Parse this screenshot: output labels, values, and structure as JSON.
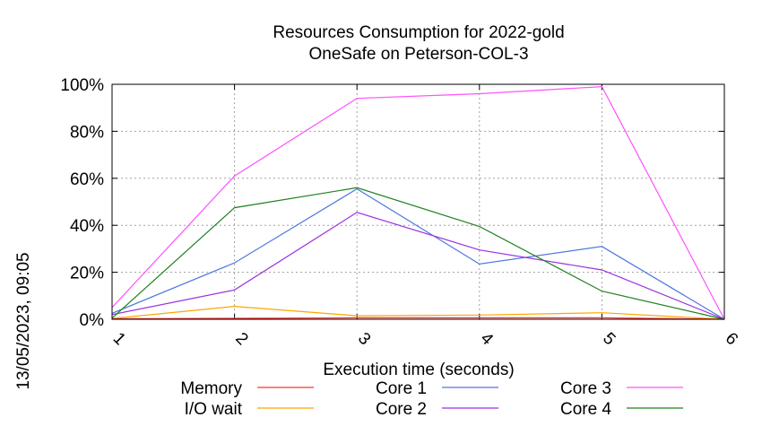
{
  "chart_data": {
    "type": "line",
    "title": "Resources Consumption for 2022-gold",
    "subtitle": "OneSafe on Peterson-COL-3",
    "xlabel": "Execution time (seconds)",
    "ylabel": "",
    "side_label": "13/05/2023, 09:05",
    "x": [
      1,
      2,
      3,
      4,
      5,
      6
    ],
    "x_tick_labels": [
      "1",
      "2",
      "3",
      "4",
      "5",
      "6"
    ],
    "xlim": [
      1,
      6
    ],
    "ylim": [
      0,
      100
    ],
    "y_ticks": [
      0,
      20,
      40,
      60,
      80,
      100
    ],
    "y_tick_labels": [
      "0%",
      "20%",
      "40%",
      "60%",
      "80%",
      "100%"
    ],
    "grid": true,
    "legend_position": "bottom",
    "series": [
      {
        "name": "Memory",
        "color": "#ff3030",
        "values": [
          0.2,
          0.4,
          0.6,
          0.6,
          0.6,
          0
        ]
      },
      {
        "name": "I/O wait",
        "color": "#ffa500",
        "values": [
          0.3,
          5.5,
          1.5,
          1.8,
          2.8,
          0
        ]
      },
      {
        "name": "Core 1",
        "color": "#5078e0",
        "values": [
          2.5,
          24,
          55.5,
          23.5,
          31,
          0
        ]
      },
      {
        "name": "Core 2",
        "color": "#9b30e0",
        "values": [
          2,
          12.5,
          45.5,
          29.5,
          21,
          0
        ]
      },
      {
        "name": "Core 3",
        "color": "#ff50ff",
        "values": [
          5,
          61,
          94,
          96,
          99,
          0
        ]
      },
      {
        "name": "Core 4",
        "color": "#208020",
        "values": [
          0.5,
          47.5,
          56,
          39.5,
          12,
          0
        ]
      }
    ]
  }
}
